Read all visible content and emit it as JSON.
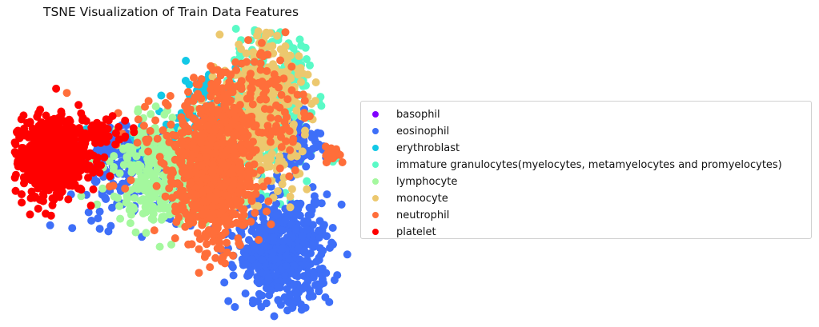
{
  "chart_data": {
    "type": "scatter",
    "title": "TSNE Visualization of Train Data Features",
    "xlabel": "",
    "ylabel": "",
    "axes_visible": false,
    "grid": false,
    "legend_position": "right",
    "legend": [
      {
        "name": "basophil",
        "color": "#8000ff"
      },
      {
        "name": "eosinophil",
        "color": "#3e6ff8"
      },
      {
        "name": "erythroblast",
        "color": "#12c8e6"
      },
      {
        "name": "immature granulocytes(myelocytes, metamyelocytes and promyelocytes)",
        "color": "#5afac6"
      },
      {
        "name": "lymphocyte",
        "color": "#a4f89e"
      },
      {
        "name": "monocyte",
        "color": "#ecc86e"
      },
      {
        "name": "neutrophil",
        "color": "#ff6e3a"
      },
      {
        "name": "platelet",
        "color": "#ff0000"
      }
    ],
    "clusters": [
      {
        "series": "basophil",
        "count": 60,
        "cx": 5.0,
        "cy": 1.2,
        "sx": 0.5,
        "sy": 1.3
      },
      {
        "series": "erythroblast",
        "count": 240,
        "cx": -12.5,
        "cy": 2.5,
        "sx": 4.5,
        "sy": 2.2
      },
      {
        "series": "erythroblast",
        "count": 120,
        "cx": -7.0,
        "cy": 10.0,
        "sx": 3.0,
        "sy": 4.5
      },
      {
        "series": "immature granulocytes(myelocytes, metamyelocytes and promyelocytes)",
        "count": 360,
        "cx": 1.2,
        "cy": 11.0,
        "sx": 2.8,
        "sy": 8.5
      },
      {
        "series": "eosinophil",
        "count": 520,
        "cx": 3.2,
        "cy": -23.0,
        "sx": 3.3,
        "sy": 6.5
      },
      {
        "series": "eosinophil",
        "count": 150,
        "cx": -16.0,
        "cy": -8.0,
        "sx": 6.5,
        "sy": 5.0
      },
      {
        "series": "eosinophil",
        "count": 90,
        "cx": -20.0,
        "cy": 1.0,
        "sx": 3.0,
        "sy": 2.5
      },
      {
        "series": "eosinophil",
        "count": 70,
        "cx": 5.5,
        "cy": 3.0,
        "sx": 1.5,
        "sy": 3.0
      },
      {
        "series": "eosinophil",
        "count": 14,
        "cx": 10.0,
        "cy": 0.3,
        "sx": 0.45,
        "sy": 0.9
      },
      {
        "series": "immature granulocytes(myelocytes, metamyelocytes and promyelocytes)",
        "count": 12,
        "cx": 10.1,
        "cy": 0.2,
        "sx": 0.4,
        "sy": 0.9
      },
      {
        "series": "lymphocyte",
        "count": 460,
        "cx": -13.0,
        "cy": -4.0,
        "sx": 4.0,
        "sy": 6.0
      },
      {
        "series": "monocyte",
        "count": 520,
        "cx": 0.0,
        "cy": 10.0,
        "sx": 2.8,
        "sy": 8.0
      },
      {
        "series": "neutrophil",
        "count": 760,
        "cx": -6.5,
        "cy": -3.5,
        "sx": 2.6,
        "sy": 9.5
      },
      {
        "series": "neutrophil",
        "count": 120,
        "cx": 0.0,
        "cy": 12.0,
        "sx": 3.5,
        "sy": 9.0
      },
      {
        "series": "neutrophil",
        "count": 30,
        "cx": 10.1,
        "cy": 0.2,
        "sx": 0.5,
        "sy": 0.9
      },
      {
        "series": "neutrophil",
        "count": 40,
        "cx": -14.0,
        "cy": 2.0,
        "sx": 4.0,
        "sy": 6.0
      },
      {
        "series": "platelet",
        "count": 650,
        "cx": -30.0,
        "cy": -0.5,
        "sx": 2.6,
        "sy": 4.5
      },
      {
        "series": "platelet",
        "count": 70,
        "cx": -24.0,
        "cy": 5.5,
        "sx": 2.8,
        "sy": 2.0
      }
    ],
    "xlim": [
      -34.5,
      12.0
    ],
    "ylim": [
      -37.0,
      29.0
    ]
  }
}
